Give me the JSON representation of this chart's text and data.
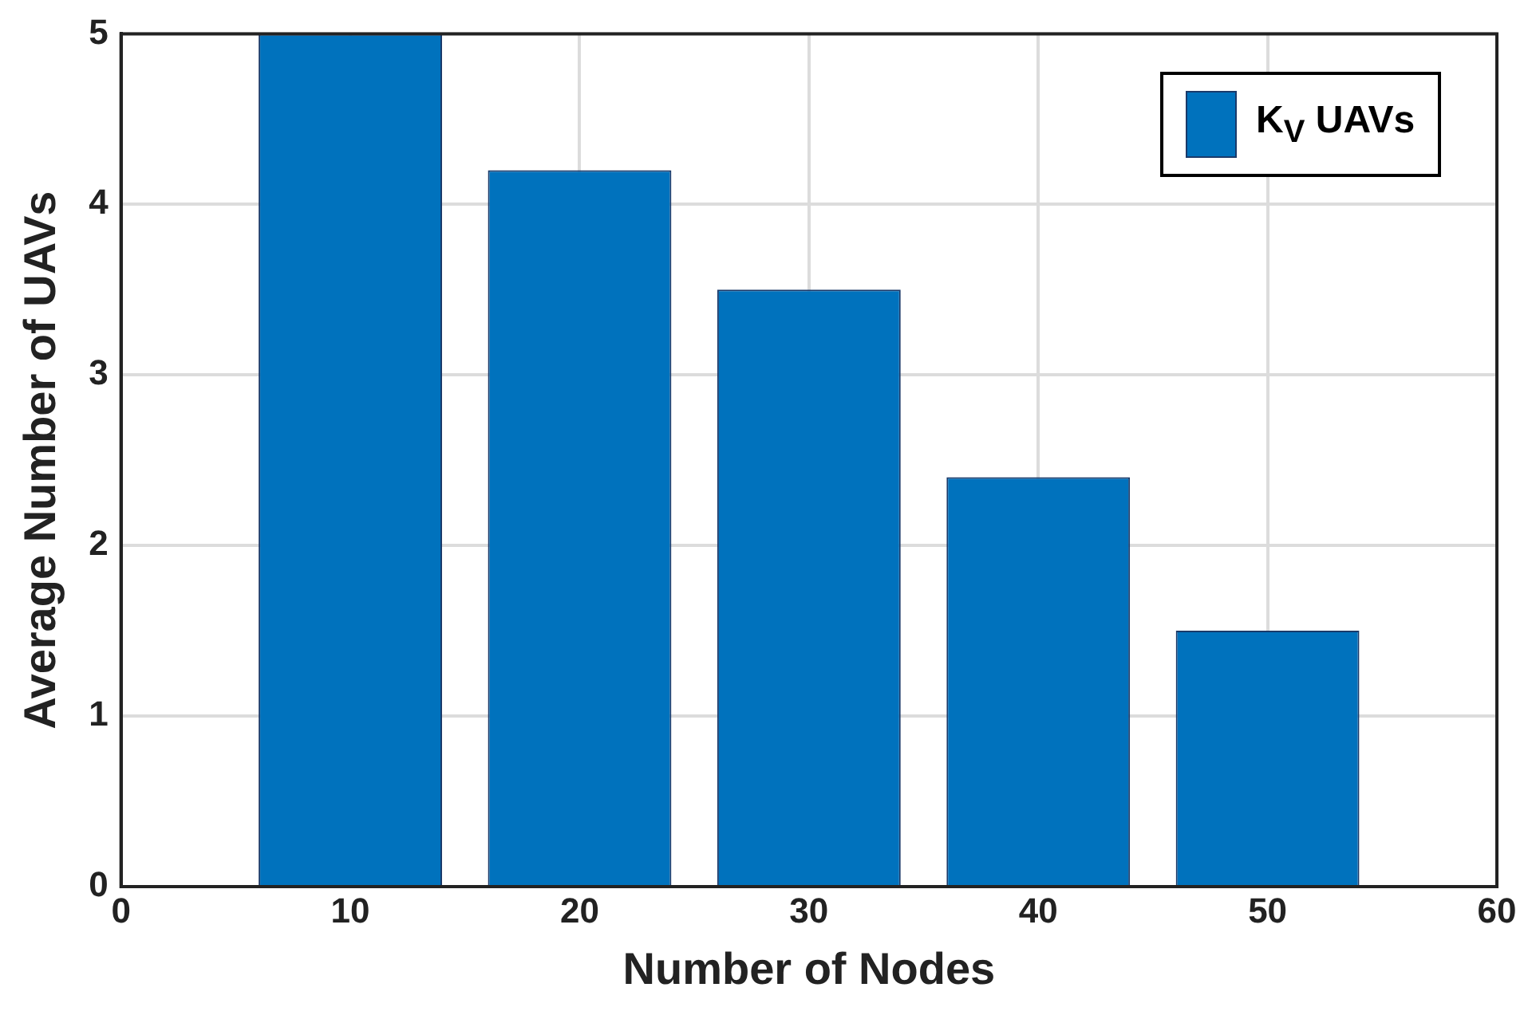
{
  "chart_data": {
    "type": "bar",
    "xlabel": "Number of Nodes",
    "ylabel": "Average Number of UAVs",
    "x": [
      10,
      20,
      30,
      40,
      50
    ],
    "series": [
      {
        "name": "K$_{V}$ UAVs",
        "color": "#0072bd",
        "values": [
          5,
          4.2,
          3.5,
          2.4,
          1.5
        ]
      }
    ],
    "xlim": [
      0,
      60
    ],
    "xticks": [
      0,
      10,
      20,
      30,
      40,
      50,
      60
    ],
    "ylim": [
      0,
      5
    ],
    "yticks": [
      0,
      1,
      2,
      3,
      4,
      5
    ],
    "grid": true,
    "legend": "top right"
  }
}
